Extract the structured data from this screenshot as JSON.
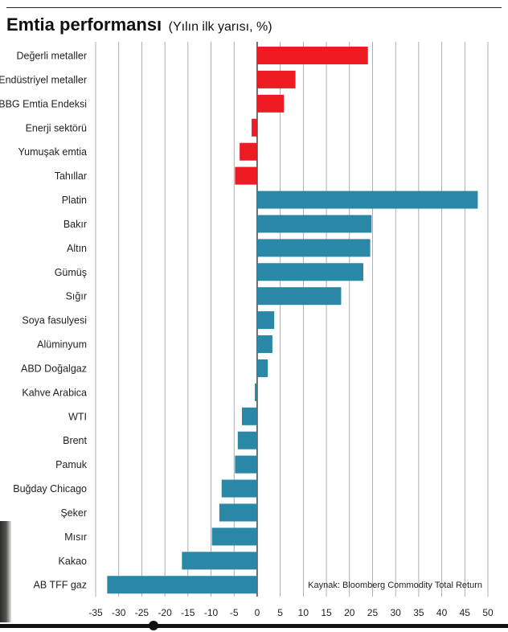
{
  "header": {
    "title": "Emtia performansı",
    "subtitle": "(Yılın ilk yarısı, %)"
  },
  "source": "Kaynak: Bloomberg Commodity Total Return",
  "colors": {
    "group1": "#ed1c24",
    "group2": "#2a87a6",
    "grid": "#9a9a9a",
    "axis": "#111111"
  },
  "chart_data": {
    "type": "bar",
    "orientation": "horizontal",
    "title": "Emtia performansı (Yılın ilk yarısı, %)",
    "xlabel": "",
    "ylabel": "",
    "xlim": [
      -35,
      50
    ],
    "ticks": [
      -35,
      -30,
      -25,
      -20,
      -15,
      -10,
      -5,
      0,
      5,
      10,
      15,
      20,
      25,
      30,
      35,
      40,
      45,
      50
    ],
    "grid": true,
    "categories": [
      "Değerli metaller",
      "Endüstriyel metaller",
      "BBG Emtia Endeksi",
      "Enerji sektörü",
      "Yumuşak emtia",
      "Tahıllar",
      "Platin",
      "Bakır",
      "Altın",
      "Gümüş",
      "Sığır",
      "Soya fasulyesi",
      "Alüminyum",
      "ABD Doğalgaz",
      "Kahve Arabica",
      "WTI",
      "Brent",
      "Pamuk",
      "Buğday Chicago",
      "Şeker",
      "Mısır",
      "Kakao",
      "AB TFF gaz"
    ],
    "values": [
      24,
      8.3,
      5.8,
      -1.2,
      -3.8,
      -4.8,
      47.8,
      24.8,
      24.5,
      23,
      18.2,
      3.7,
      3.3,
      2.3,
      -0.5,
      -3.3,
      -4.2,
      -4.8,
      -7.7,
      -8.2,
      -9.8,
      -16.3,
      -32.5
    ],
    "groups": [
      1,
      1,
      1,
      1,
      1,
      1,
      2,
      2,
      2,
      2,
      2,
      2,
      2,
      2,
      2,
      2,
      2,
      2,
      2,
      2,
      2,
      2,
      2
    ]
  }
}
